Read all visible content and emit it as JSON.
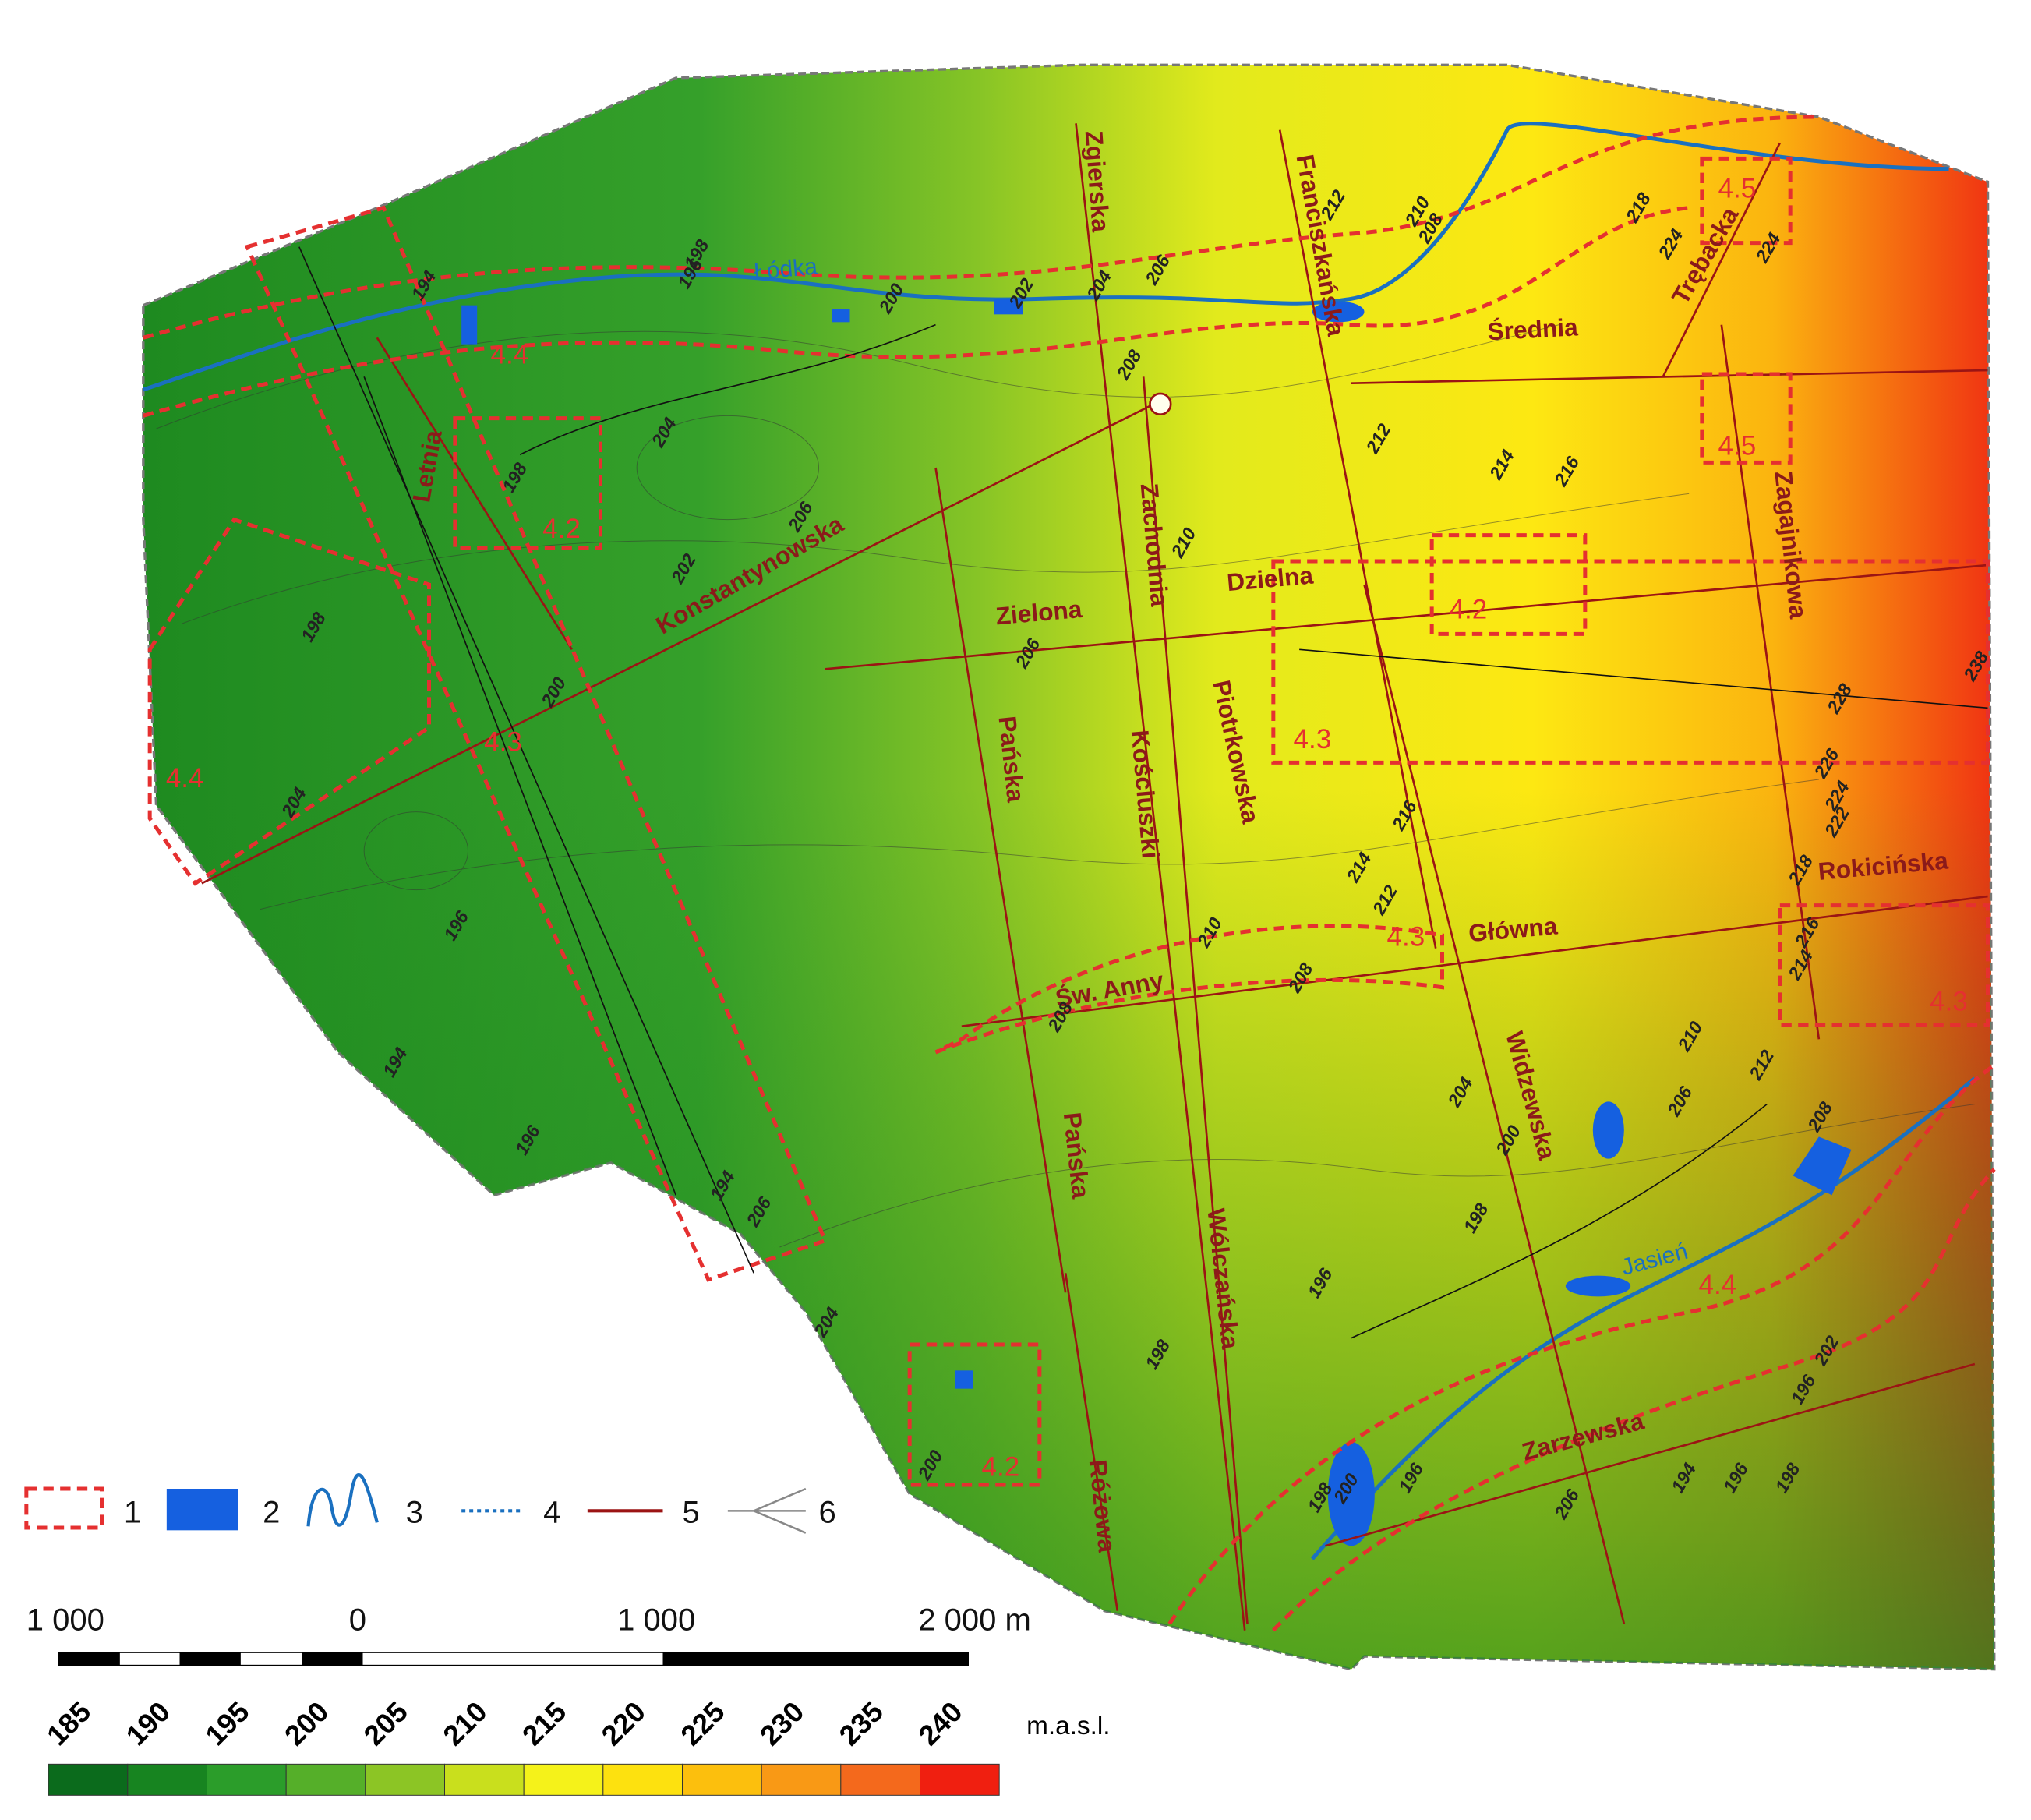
{
  "map": {
    "streets": [
      "Zgierska",
      "Franciszkańska",
      "Średnia",
      "Trębacka",
      "Zachodnia",
      "Letnia",
      "Konstantynowska",
      "Zielona",
      "Dzielna",
      "Zagajnikowa",
      "Pańska",
      "Pańska",
      "Kościuszki",
      "Piotrkowska",
      "Rokicińska",
      "Główna",
      "Św. Anny",
      "Widzewska",
      "Wólczańska",
      "Różowa",
      "Zarzewska"
    ],
    "zones": [
      "4.5",
      "4.4",
      "4.2",
      "4.5",
      "4.2",
      "4.3",
      "4.4",
      "4.3",
      "4.3",
      "4.3",
      "4.4",
      "4.2"
    ],
    "rivers": [
      "Łódka",
      "Jasień"
    ],
    "contour_labels": [
      198,
      196,
      194,
      200,
      202,
      204,
      206,
      208,
      212,
      210,
      208,
      218,
      224,
      224,
      212,
      214,
      216,
      204,
      206,
      202,
      198,
      210,
      206,
      208,
      200,
      198,
      204,
      216,
      214,
      212,
      210,
      208,
      238,
      228,
      226,
      224,
      222,
      218,
      216,
      214,
      210,
      206,
      212,
      208,
      204,
      200,
      198,
      196,
      196,
      194,
      196,
      194,
      206,
      204,
      198,
      200,
      202,
      196,
      194,
      196,
      198,
      196,
      200,
      198,
      206
    ],
    "legend": [
      1,
      2,
      3,
      4,
      5,
      6
    ],
    "scale_bar": [
      "1 000",
      "0",
      "1 000",
      "2 000 m"
    ],
    "elevation_legend": {
      "values": [
        185,
        190,
        195,
        200,
        205,
        210,
        215,
        220,
        225,
        230,
        235,
        240
      ],
      "unit": "m.a.s.l.",
      "colors": [
        "#0b6b1c",
        "#178420",
        "#2b9d2a",
        "#55af29",
        "#8cc525",
        "#c9df1d",
        "#f5f21a",
        "#fde10f",
        "#fcbf0d",
        "#f99915",
        "#f4691c",
        "#f01f10"
      ]
    }
  }
}
